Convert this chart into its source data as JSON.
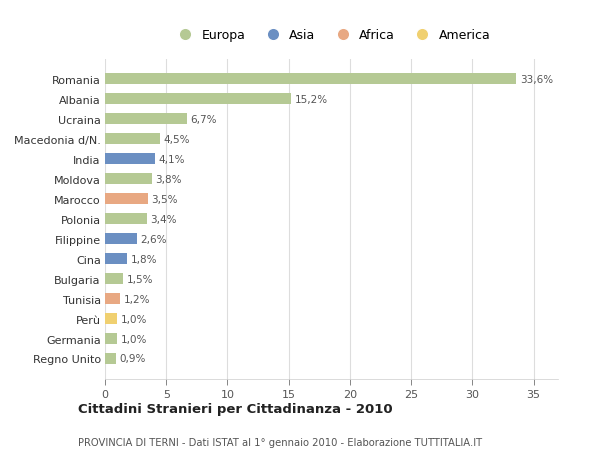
{
  "categories": [
    "Romania",
    "Albania",
    "Ucraina",
    "Macedonia d/N.",
    "India",
    "Moldova",
    "Marocco",
    "Polonia",
    "Filippine",
    "Cina",
    "Bulgaria",
    "Tunisia",
    "Perù",
    "Germania",
    "Regno Unito"
  ],
  "values": [
    33.6,
    15.2,
    6.7,
    4.5,
    4.1,
    3.8,
    3.5,
    3.4,
    2.6,
    1.8,
    1.5,
    1.2,
    1.0,
    1.0,
    0.9
  ],
  "labels": [
    "33,6%",
    "15,2%",
    "6,7%",
    "4,5%",
    "4,1%",
    "3,8%",
    "3,5%",
    "3,4%",
    "2,6%",
    "1,8%",
    "1,5%",
    "1,2%",
    "1,0%",
    "1,0%",
    "0,9%"
  ],
  "continents": [
    "Europa",
    "Europa",
    "Europa",
    "Europa",
    "Asia",
    "Europa",
    "Africa",
    "Europa",
    "Asia",
    "Asia",
    "Europa",
    "Africa",
    "America",
    "Europa",
    "Europa"
  ],
  "colors": {
    "Europa": "#b5c994",
    "Asia": "#6b8fc2",
    "Africa": "#e8a882",
    "America": "#f0d070"
  },
  "title": "Cittadini Stranieri per Cittadinanza - 2010",
  "subtitle": "PROVINCIA DI TERNI - Dati ISTAT al 1° gennaio 2010 - Elaborazione TUTTITALIA.IT",
  "xlim": [
    0,
    37
  ],
  "xticks": [
    0,
    5,
    10,
    15,
    20,
    25,
    30,
    35
  ],
  "background_color": "#ffffff",
  "grid_color": "#dddddd",
  "bar_height": 0.55,
  "legend_order": [
    "Europa",
    "Asia",
    "Africa",
    "America"
  ]
}
